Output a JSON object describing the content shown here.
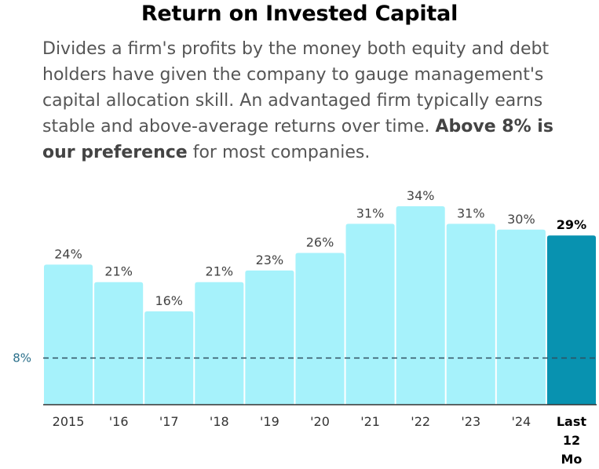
{
  "title": "Return on Invested Capital",
  "description": {
    "part1": "Divides a firm's profits by the money both equity and debt holders have given the company to gauge management's capital allocation skill. An advantaged firm typically earns stable and above-average returns over time. ",
    "bold": "Above 8% is our preference",
    "part2": " for most companies."
  },
  "colors": {
    "bar": "#a6f2fb",
    "highlight_bar": "#0892b0",
    "reference_line": "#2f4f5f",
    "axis": "#333333"
  },
  "chart_data": {
    "type": "bar",
    "categories": [
      "2015",
      "'16",
      "'17",
      "'18",
      "'19",
      "'20",
      "'21",
      "'22",
      "'23",
      "'24",
      "Last 12 Mo"
    ],
    "values": [
      24,
      21,
      16,
      21,
      23,
      26,
      31,
      34,
      31,
      30,
      29
    ],
    "data_labels": [
      "24%",
      "21%",
      "16%",
      "21%",
      "23%",
      "26%",
      "31%",
      "34%",
      "31%",
      "30%",
      "29%"
    ],
    "highlight_index": 10,
    "reference_line": {
      "value": 8,
      "label": "8%",
      "style": "dashed"
    },
    "ylim": [
      0,
      34
    ],
    "grid": false,
    "legend": "none"
  }
}
